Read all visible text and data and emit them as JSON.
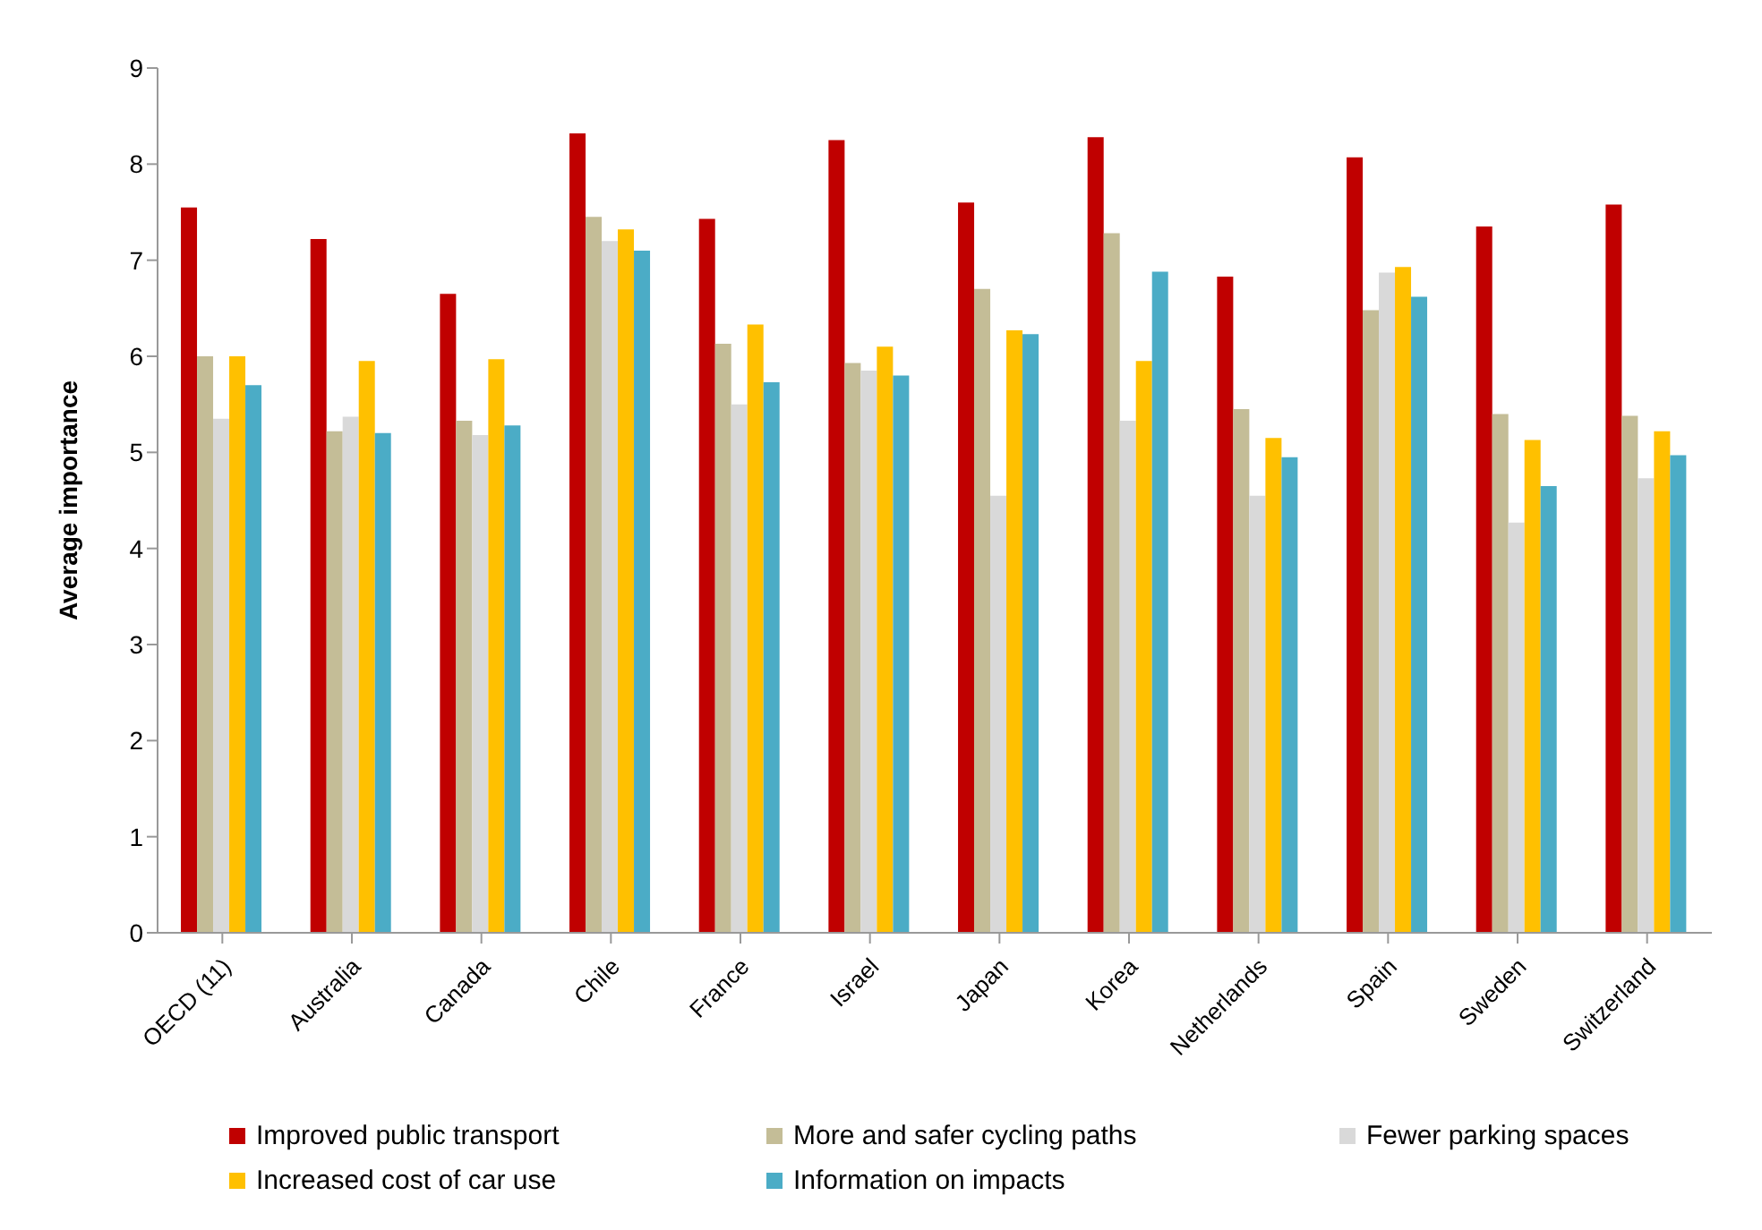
{
  "chart_data": {
    "type": "bar",
    "ylabel": "Average importance",
    "categories": [
      "OECD (11)",
      "Australia",
      "Canada",
      "Chile",
      "France",
      "Israel",
      "Japan",
      "Korea",
      "Netherlands",
      "Spain",
      "Sweden",
      "Switzerland"
    ],
    "series": [
      {
        "name": "Improved public transport",
        "color": "#c00000",
        "values": [
          7.55,
          7.22,
          6.65,
          8.32,
          7.43,
          8.25,
          7.6,
          8.28,
          6.83,
          8.07,
          7.35,
          7.58
        ]
      },
      {
        "name": "More and safer cycling paths",
        "color": "#c4bd97",
        "values": [
          6.0,
          5.22,
          5.33,
          7.45,
          6.13,
          5.93,
          6.7,
          7.28,
          5.45,
          6.48,
          5.4,
          5.38
        ]
      },
      {
        "name": "Fewer parking spaces",
        "color": "#d9d9d9",
        "values": [
          5.35,
          5.37,
          5.18,
          7.2,
          5.5,
          5.85,
          4.55,
          5.33,
          4.55,
          6.87,
          4.27,
          4.73
        ]
      },
      {
        "name": "Increased cost of car use",
        "color": "#ffc000",
        "values": [
          6.0,
          5.95,
          5.97,
          7.32,
          6.33,
          6.1,
          6.27,
          5.95,
          5.15,
          6.93,
          5.13,
          5.22
        ]
      },
      {
        "name": "Information on impacts",
        "color": "#4bacc6",
        "values": [
          5.7,
          5.2,
          5.28,
          7.1,
          5.73,
          5.8,
          6.23,
          6.88,
          4.95,
          6.62,
          4.65,
          4.97
        ]
      }
    ],
    "ylim": [
      0,
      9
    ],
    "yticks": [
      0,
      1,
      2,
      3,
      4,
      5,
      6,
      7,
      8,
      9
    ],
    "grid": false,
    "legend": "bottom"
  }
}
